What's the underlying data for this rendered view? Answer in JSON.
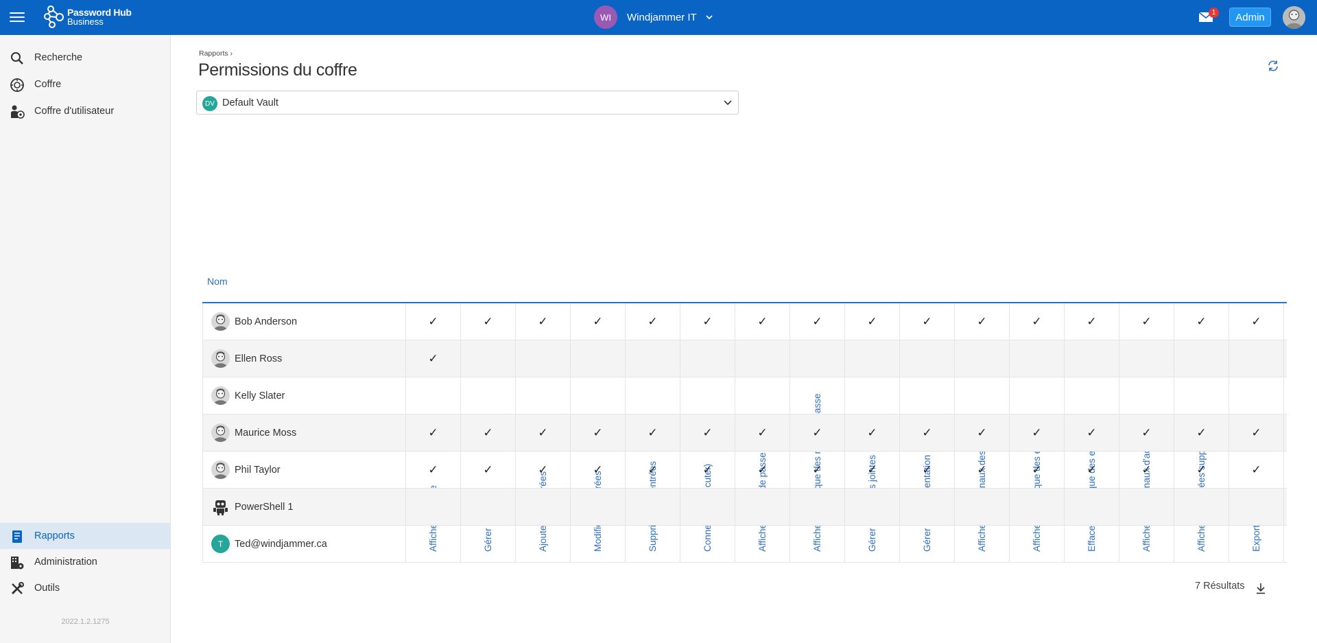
{
  "header": {
    "logo_line1": "Password Hub",
    "logo_line2": "Business",
    "org_initials": "WI",
    "org_name": "Windjammer IT",
    "mail_badge": "1",
    "admin_label": "Admin",
    "colors": {
      "bar": "#0a64c4",
      "org_avatar": "#9b59b6",
      "badge": "#e53935",
      "admin": "#2196f3"
    }
  },
  "sidebar": {
    "top_items": [
      {
        "label": "Recherche",
        "icon": "search-icon"
      },
      {
        "label": "Coffre",
        "icon": "vault-icon"
      },
      {
        "label": "Coffre d'utilisateur",
        "icon": "user-vault-icon"
      }
    ],
    "bottom_items": [
      {
        "label": "Rapports",
        "icon": "reports-icon",
        "active": true
      },
      {
        "label": "Administration",
        "icon": "administration-icon"
      },
      {
        "label": "Outils",
        "icon": "tools-icon"
      }
    ],
    "version": "2022.1.2.1275"
  },
  "main": {
    "breadcrumb": "Rapports",
    "title": "Permissions du coffre",
    "vault": {
      "initials": "DV",
      "name": "Default Vault"
    },
    "table": {
      "name_header": "Nom",
      "permissions": [
        "Afficher le coffre",
        "Gérer le coffre",
        "Ajouter des entrées",
        "Modifier les entrées",
        "Supprimer les entrées",
        "Connecter (Exécuter)",
        "Afficher le mot de passe",
        "Afficher l'historique des mots de passe",
        "Gérer les pièces jointes",
        "Gérer la documentation",
        "Afficher les journaux des entrées",
        "Afficher l'historique des entrées",
        "Effacer l'historique des entrées",
        "Afficher les journaux d'activité",
        "Afficher les entrées supprimées",
        "Exporter"
      ],
      "rows": [
        {
          "name": "Bob Anderson",
          "avatar": "photo",
          "checks": [
            1,
            1,
            1,
            1,
            1,
            1,
            1,
            1,
            1,
            1,
            1,
            1,
            1,
            1,
            1,
            1
          ]
        },
        {
          "name": "Ellen Ross",
          "avatar": "photo",
          "checks": [
            1,
            0,
            0,
            0,
            0,
            0,
            0,
            0,
            0,
            0,
            0,
            0,
            0,
            0,
            0,
            0
          ]
        },
        {
          "name": "Kelly Slater",
          "avatar": "photo",
          "checks": [
            0,
            0,
            0,
            0,
            0,
            0,
            0,
            0,
            0,
            0,
            0,
            0,
            0,
            0,
            0,
            0
          ]
        },
        {
          "name": "Maurice Moss",
          "avatar": "photo",
          "checks": [
            1,
            1,
            1,
            1,
            1,
            1,
            1,
            1,
            1,
            1,
            1,
            1,
            1,
            1,
            1,
            1
          ]
        },
        {
          "name": "Phil Taylor",
          "avatar": "photo",
          "checks": [
            1,
            1,
            1,
            1,
            1,
            1,
            1,
            1,
            1,
            1,
            1,
            1,
            1,
            1,
            1,
            1
          ]
        },
        {
          "name": "PowerShell 1",
          "avatar": "robot",
          "checks": [
            0,
            0,
            0,
            0,
            0,
            0,
            0,
            0,
            0,
            0,
            0,
            0,
            0,
            0,
            0,
            0
          ]
        },
        {
          "name": "Ted@windjammer.ca",
          "avatar": "letter",
          "initial": "T",
          "checks": [
            0,
            0,
            0,
            0,
            0,
            0,
            0,
            0,
            0,
            0,
            0,
            0,
            0,
            0,
            0,
            0
          ]
        }
      ],
      "check_glyph": "✓"
    },
    "results": "7 Résultats"
  }
}
